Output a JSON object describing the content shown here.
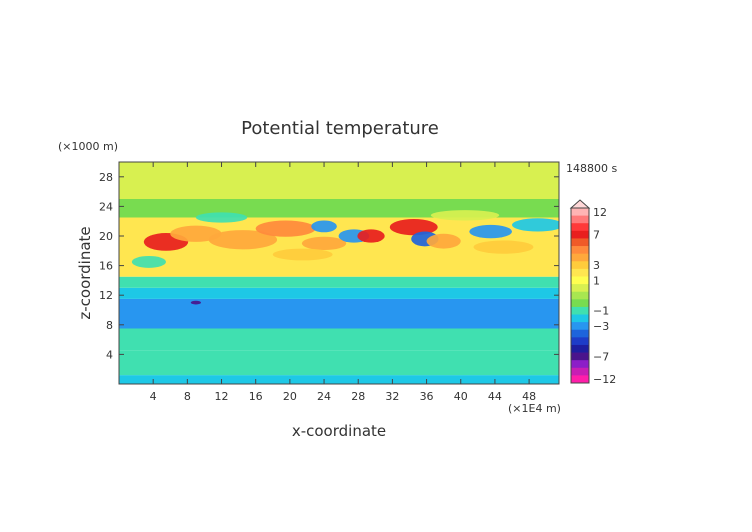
{
  "chart_data": {
    "type": "heatmap",
    "title": "Potential temperature",
    "xlabel": "x-coordinate",
    "ylabel": "z-coordinate",
    "x_unit": "(×1E4 m)",
    "y_unit": "(×1000 m)",
    "time_label": "148800 s",
    "xlim": [
      0,
      51.5
    ],
    "ylim": [
      0,
      30
    ],
    "x_ticks": [
      4,
      8,
      12,
      16,
      20,
      24,
      28,
      32,
      36,
      40,
      44,
      48
    ],
    "y_ticks": [
      4,
      8,
      12,
      16,
      20,
      24,
      28
    ],
    "colorbar": {
      "label_values": [
        "12",
        "7",
        "3",
        "1",
        "−1",
        "−3",
        "−7",
        "−12"
      ],
      "levels": [
        12,
        10,
        8,
        7,
        6,
        5,
        4,
        3,
        2,
        1,
        0.5,
        0,
        -0.5,
        -1,
        -2,
        -3,
        -4,
        -5,
        -6,
        -7,
        -8,
        -10,
        -12
      ],
      "colors": [
        "#ffb4b4",
        "#ff7a7a",
        "#ff3838",
        "#e81e1e",
        "#f05a28",
        "#ff8a3c",
        "#ffa83c",
        "#ffcc3c",
        "#ffe650",
        "#ffff50",
        "#d8f050",
        "#a8e650",
        "#78dc50",
        "#40e0b0",
        "#1ec8e6",
        "#2896f0",
        "#1e64dc",
        "#1e3cc8",
        "#1e1ea0",
        "#4a148c",
        "#8c1ec8",
        "#c81eb4",
        "#ff1eaa"
      ]
    },
    "bands": [
      {
        "z": [
          0,
          1.2
        ],
        "value": -2
      },
      {
        "z": [
          1.2,
          4.5
        ],
        "value": -1.3
      },
      {
        "z": [
          4.5,
          7.5
        ],
        "value": -1
      },
      {
        "z": [
          7.5,
          11.5
        ],
        "value": -3.3
      },
      {
        "z": [
          11.5,
          13
        ],
        "value": -2.5
      },
      {
        "z": [
          13,
          14.5
        ],
        "value": -1.5
      },
      {
        "z": [
          14.5,
          22.5
        ],
        "value": 1.5
      },
      {
        "z": [
          22.5,
          25
        ],
        "value": -0.5
      },
      {
        "z": [
          25,
          30
        ],
        "value": 0.3
      }
    ],
    "blobs": [
      {
        "x": 5.5,
        "z": 19.2,
        "rx": 2.6,
        "rz": 1.2,
        "value": 7
      },
      {
        "x": 9,
        "z": 20.3,
        "rx": 3,
        "rz": 1.1,
        "value": 4
      },
      {
        "x": 14.5,
        "z": 19.5,
        "rx": 4,
        "rz": 1.3,
        "value": 4
      },
      {
        "x": 19.5,
        "z": 21,
        "rx": 3.5,
        "rz": 1.1,
        "value": 5
      },
      {
        "x": 24,
        "z": 21.3,
        "rx": 1.5,
        "rz": 0.8,
        "value": -3
      },
      {
        "x": 24,
        "z": 19,
        "rx": 2.6,
        "rz": 0.9,
        "value": 4
      },
      {
        "x": 27.5,
        "z": 20,
        "rx": 1.8,
        "rz": 0.9,
        "value": -3
      },
      {
        "x": 29.5,
        "z": 20,
        "rx": 1.6,
        "rz": 0.9,
        "value": 7
      },
      {
        "x": 34.5,
        "z": 21.2,
        "rx": 2.8,
        "rz": 1.1,
        "value": 7
      },
      {
        "x": 35.8,
        "z": 19.6,
        "rx": 1.6,
        "rz": 1,
        "value": -4
      },
      {
        "x": 38,
        "z": 19.3,
        "rx": 2,
        "rz": 1,
        "value": 4
      },
      {
        "x": 43.5,
        "z": 20.6,
        "rx": 2.5,
        "rz": 0.9,
        "value": -3
      },
      {
        "x": 49,
        "z": 21.5,
        "rx": 3,
        "rz": 0.9,
        "value": -2
      },
      {
        "x": 45,
        "z": 18.5,
        "rx": 3.5,
        "rz": 0.9,
        "value": 3
      },
      {
        "x": 21.5,
        "z": 17.5,
        "rx": 3.5,
        "rz": 0.8,
        "value": 3
      },
      {
        "x": 3.5,
        "z": 16.5,
        "rx": 2,
        "rz": 0.8,
        "value": -1.5
      },
      {
        "x": 12,
        "z": 22.5,
        "rx": 3,
        "rz": 0.7,
        "value": -1
      },
      {
        "x": 40.5,
        "z": 22.8,
        "rx": 4,
        "rz": 0.7,
        "value": 0.5
      },
      {
        "x": 9,
        "z": 11,
        "rx": 0.6,
        "rz": 0.25,
        "value": -7
      }
    ]
  }
}
